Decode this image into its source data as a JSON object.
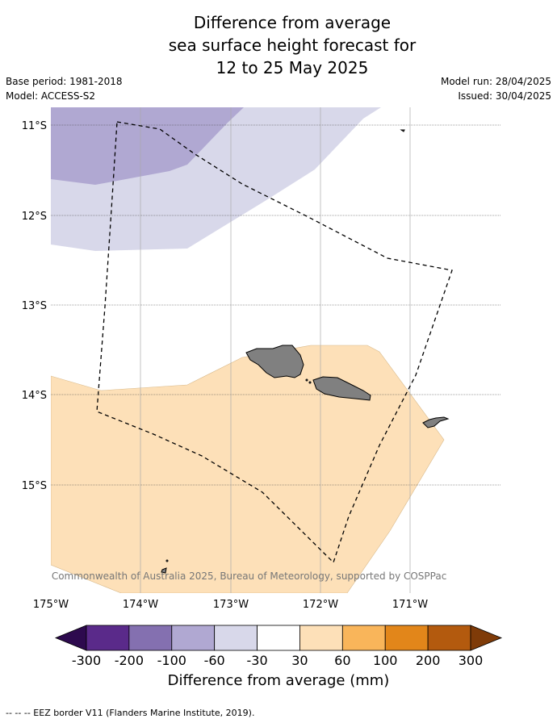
{
  "title_lines": [
    "Difference from average",
    "sea surface height forecast for",
    "12 to 25 May 2025"
  ],
  "base_period": "Base period: 1981-2018",
  "model": "Model: ACCESS-S2",
  "model_run": "Model run: 28/04/2025",
  "issued": "Issued: 30/04/2025",
  "lat_labels": [
    "11°S",
    "12°S",
    "13°S",
    "14°S",
    "15°S"
  ],
  "lon_labels": [
    "175°W",
    "174°W",
    "173°W",
    "172°W",
    "171°W"
  ],
  "copyright": "© Commonwealth of Australia 2025, Bureau of Meteorology, supported by COSPPac",
  "colorbar": {
    "ticks": [
      "-300",
      "-200",
      "-100",
      "-60",
      "-30",
      "30",
      "60",
      "100",
      "200",
      "300"
    ],
    "colors": [
      "#2d0a4e",
      "#5a2a8a",
      "#8470b0",
      "#b0a8d2",
      "#d8d8ea",
      "#ffffff",
      "#fde0b8",
      "#f9b55a",
      "#e2861a",
      "#b35a0e",
      "#7f3b08"
    ],
    "title": "Difference from average (mm)"
  },
  "regions": [
    {
      "name": "-100 to -60 mm",
      "color": "#b0a8d2"
    },
    {
      "name": "-60 to -30 mm",
      "color": "#d8d8ea"
    },
    {
      "name": "30 to 60 mm",
      "color": "#fde0b8"
    }
  ],
  "land_color": "#808080",
  "footer": "--  --  -- EEZ border V11 (Flanders Marine Institute, 2019)."
}
